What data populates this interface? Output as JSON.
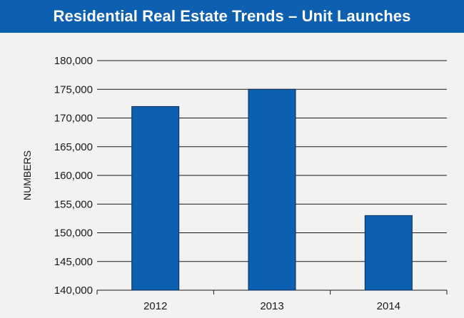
{
  "colors": {
    "title_bar": "#0d5fb0",
    "background": "#f2f2f2",
    "bar_fill": "#0d5fb0",
    "bar_stroke": "#0a2a55",
    "gridline": "#1a1a1a",
    "text": "#1a1a1a"
  },
  "chart_data": {
    "type": "bar",
    "title": "Residential Real Estate Trends – Unit Launches",
    "ylabel": "NUMBERS",
    "xlabel": "",
    "categories": [
      "2012",
      "2013",
      "2014"
    ],
    "values": [
      172000,
      175000,
      153000
    ],
    "ylim": [
      140000,
      180000
    ],
    "yticks": [
      140000,
      145000,
      150000,
      155000,
      160000,
      165000,
      170000,
      175000,
      180000
    ],
    "ytick_labels": [
      "140,000",
      "145,000",
      "150,000",
      "155,000",
      "160,000",
      "165,000",
      "170,000",
      "175,000",
      "180,000"
    ],
    "grid": true,
    "legend": "none"
  }
}
